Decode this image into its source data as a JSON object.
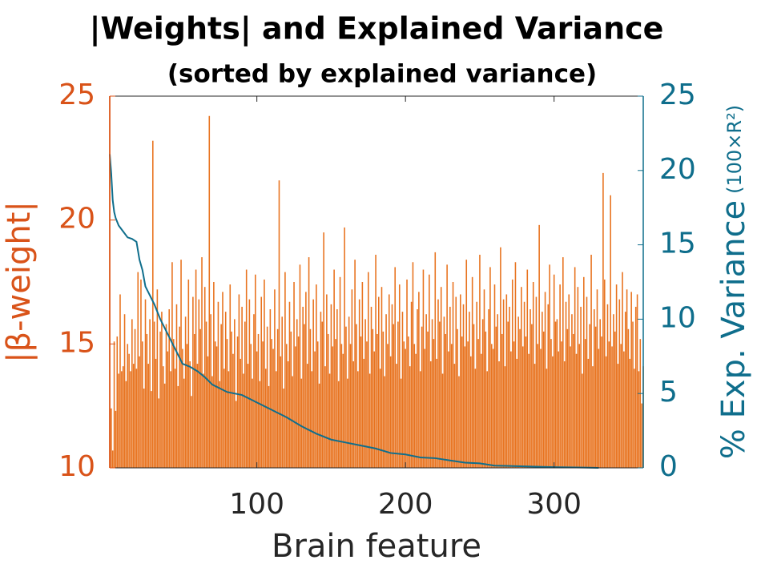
{
  "chart_data": {
    "type": "bar",
    "title": "|Weights| and Explained Variance",
    "subtitle": "(sorted by explained variance)",
    "xlabel": "Brain feature",
    "ylabel": "|β-weight|",
    "y2label": "% Exp. Variance",
    "y2label_unit": "(100×R²)",
    "xlim": [
      1,
      360
    ],
    "xticks": [
      100,
      200,
      300
    ],
    "ylim": [
      10,
      25
    ],
    "yticks": [
      10,
      15,
      20,
      25
    ],
    "y2lim": [
      0,
      25
    ],
    "y2ticks": [
      0,
      5,
      10,
      15,
      20,
      25
    ],
    "ycolor": "#d95319",
    "y2color": "#0f6e8c",
    "x": [
      1,
      2,
      3,
      4,
      5,
      6,
      7,
      8,
      9,
      10,
      11,
      12,
      13,
      14,
      15,
      16,
      17,
      18,
      19,
      20,
      21,
      22,
      23,
      24,
      25,
      26,
      27,
      28,
      29,
      30,
      31,
      32,
      33,
      34,
      35,
      36,
      37,
      38,
      39,
      40,
      41,
      42,
      43,
      44,
      45,
      46,
      47,
      48,
      49,
      50,
      51,
      52,
      53,
      54,
      55,
      56,
      57,
      58,
      59,
      60,
      61,
      62,
      63,
      64,
      65,
      66,
      67,
      68,
      69,
      70,
      71,
      72,
      73,
      74,
      75,
      76,
      77,
      78,
      79,
      80,
      81,
      82,
      83,
      84,
      85,
      86,
      87,
      88,
      89,
      90,
      91,
      92,
      93,
      94,
      95,
      96,
      97,
      98,
      99,
      100,
      101,
      102,
      103,
      104,
      105,
      106,
      107,
      108,
      109,
      110,
      111,
      112,
      113,
      114,
      115,
      116,
      117,
      118,
      119,
      120,
      121,
      122,
      123,
      124,
      125,
      126,
      127,
      128,
      129,
      130,
      131,
      132,
      133,
      134,
      135,
      136,
      137,
      138,
      139,
      140,
      141,
      142,
      143,
      144,
      145,
      146,
      147,
      148,
      149,
      150,
      151,
      152,
      153,
      154,
      155,
      156,
      157,
      158,
      159,
      160,
      161,
      162,
      163,
      164,
      165,
      166,
      167,
      168,
      169,
      170,
      171,
      172,
      173,
      174,
      175,
      176,
      177,
      178,
      179,
      180,
      181,
      182,
      183,
      184,
      185,
      186,
      187,
      188,
      189,
      190,
      191,
      192,
      193,
      194,
      195,
      196,
      197,
      198,
      199,
      200,
      201,
      202,
      203,
      204,
      205,
      206,
      207,
      208,
      209,
      210,
      211,
      212,
      213,
      214,
      215,
      216,
      217,
      218,
      219,
      220,
      221,
      222,
      223,
      224,
      225,
      226,
      227,
      228,
      229,
      230,
      231,
      232,
      233,
      234,
      235,
      236,
      237,
      238,
      239,
      240,
      241,
      242,
      243,
      244,
      245,
      246,
      247,
      248,
      249,
      250,
      251,
      252,
      253,
      254,
      255,
      256,
      257,
      258,
      259,
      260,
      261,
      262,
      263,
      264,
      265,
      266,
      267,
      268,
      269,
      270,
      271,
      272,
      273,
      274,
      275,
      276,
      277,
      278,
      279,
      280,
      281,
      282,
      283,
      284,
      285,
      286,
      287,
      288,
      289,
      290,
      291,
      292,
      293,
      294,
      295,
      296,
      297,
      298,
      299,
      300,
      301,
      302,
      303,
      304,
      305,
      306,
      307,
      308,
      309,
      310,
      311,
      312,
      313,
      314,
      315,
      316,
      317,
      318,
      319,
      320,
      321,
      322,
      323,
      324,
      325,
      326,
      327,
      328,
      329,
      330,
      331,
      332,
      333,
      334,
      335,
      336,
      337,
      338,
      339,
      340,
      341,
      342,
      343,
      344,
      345,
      346,
      347,
      348,
      349,
      350,
      351,
      352,
      353,
      354,
      355,
      356,
      357,
      358,
      359,
      360
    ],
    "series": [
      {
        "type": "bar",
        "color": "#e8731f",
        "values": [
          25,
          12.4,
          10.7,
          15.1,
          12.3,
          15.3,
          13.8,
          17.0,
          13.9,
          14.1,
          16.2,
          13.5,
          15.0,
          14.6,
          13.9,
          16.0,
          14.2,
          15.6,
          14.0,
          17.9,
          14.5,
          17.6,
          15.1,
          13.2,
          16.8,
          15.4,
          14.2,
          16.0,
          13.1,
          23.2,
          15.9,
          14.4,
          17.2,
          12.8,
          15.5,
          16.3,
          14.1,
          13.4,
          15.8,
          14.7,
          16.4,
          13.9,
          18.3,
          15.2,
          14.0,
          16.6,
          13.3,
          15.7,
          18.4,
          14.8,
          13.6,
          16.1,
          15.0,
          17.6,
          14.3,
          12.9,
          16.9,
          15.4,
          18.0,
          14.2,
          16.8,
          15.6,
          18.5,
          13.8,
          17.3,
          15.9,
          14.5,
          24.2,
          16.2,
          13.7,
          17.5,
          15.1,
          14.9,
          16.7,
          13.5,
          15.8,
          17.1,
          14.0,
          16.3,
          15.2,
          13.9,
          17.4,
          15.5,
          14.6,
          16.0,
          12.7,
          15.3,
          17.0,
          14.4,
          16.5,
          13.8,
          15.9,
          18.0,
          14.2,
          16.8,
          15.0,
          13.6,
          16.2,
          17.8,
          14.7,
          15.4,
          13.5,
          16.9,
          15.1,
          17.6,
          14.0,
          15.7,
          13.3,
          16.4,
          15.2,
          14.8,
          17.2,
          13.9,
          15.6,
          21.6,
          14.5,
          16.1,
          13.2,
          17.9,
          15.0,
          14.3,
          16.7,
          15.5,
          13.7,
          17.5,
          14.9,
          16.0,
          15.3,
          18.2,
          13.6,
          16.5,
          15.8,
          17.1,
          14.2,
          18.5,
          15.6,
          13.9,
          16.8,
          14.7,
          17.4,
          15.1,
          13.4,
          16.3,
          15.9,
          19.5,
          14.1,
          17.0,
          15.4,
          13.8,
          16.6,
          14.9,
          18.0,
          15.2,
          16.4,
          13.5,
          17.7,
          15.0,
          14.6,
          19.7,
          15.7,
          13.6,
          16.1,
          15.0,
          17.2,
          14.3,
          18.4,
          15.8,
          13.9,
          16.8,
          15.3,
          17.5,
          14.4,
          16.0,
          15.1,
          17.9,
          13.8,
          16.5,
          15.6,
          14.7,
          18.6,
          15.4,
          16.9,
          14.0,
          17.3,
          15.5,
          13.7,
          16.2,
          15.0,
          17.0,
          14.5,
          16.6,
          15.8,
          18.1,
          14.2,
          15.9,
          17.4,
          13.6,
          16.3,
          15.1,
          14.8,
          17.6,
          15.3,
          14.1,
          16.7,
          18.3,
          15.0,
          14.6,
          16.4,
          17.1,
          13.9,
          15.7,
          18.0,
          14.8,
          16.2,
          15.5,
          17.8,
          14.3,
          16.0,
          15.2,
          18.7,
          14.4,
          16.8,
          15.9,
          17.3,
          13.8,
          16.1,
          15.4,
          18.2,
          14.7,
          16.5,
          15.0,
          17.5,
          14.2,
          16.9,
          15.6,
          13.7,
          17.0,
          15.3,
          16.6,
          14.9,
          18.4,
          15.1,
          16.3,
          14.5,
          17.7,
          15.8,
          14.0,
          16.7,
          15.2,
          18.6,
          14.6,
          16.0,
          17.2,
          15.5,
          13.9,
          16.4,
          18.1,
          15.0,
          14.8,
          17.4,
          15.7,
          16.2,
          14.3,
          18.9,
          15.4,
          16.8,
          14.1,
          17.0,
          15.9,
          16.5,
          14.7,
          17.6,
          15.1,
          18.3,
          14.4,
          16.1,
          15.6,
          17.3,
          14.9,
          16.7,
          15.3,
          18.0,
          14.6,
          16.4,
          15.8,
          17.5,
          14.2,
          16.9,
          15.0,
          19.8,
          14.8,
          16.3,
          15.5,
          17.1,
          14.0,
          16.6,
          18.2,
          15.2,
          14.5,
          17.8,
          15.9,
          16.0,
          14.7,
          17.4,
          15.1,
          18.5,
          14.3,
          16.7,
          15.6,
          17.0,
          14.9,
          16.2,
          15.4,
          18.1,
          14.6,
          17.3,
          15.0,
          16.5,
          13.8,
          17.7,
          15.2,
          16.9,
          14.4,
          15.8,
          18.6,
          14.1,
          16.4,
          15.7,
          17.2,
          14.8,
          16.0,
          15.3,
          21.9,
          17.6,
          14.5,
          16.6,
          15.1,
          21.0,
          14.9,
          16.2,
          15.5,
          17.4,
          14.2,
          16.8,
          15.0,
          17.9,
          14.7,
          16.3,
          17.2,
          15.6,
          14.4,
          17.1,
          15.9,
          14.0,
          16.5,
          17.0,
          13.9,
          15.2,
          12.6,
          14.1
        ]
      },
      {
        "type": "line",
        "axis": "y2",
        "color": "#0f6e8c",
        "x": [
          1,
          2,
          3,
          4,
          5,
          7,
          10,
          13,
          16,
          19,
          21,
          23,
          25,
          28,
          31,
          35,
          40,
          45,
          50,
          55,
          60,
          65,
          70,
          80,
          90,
          100,
          110,
          120,
          130,
          140,
          150,
          160,
          170,
          180,
          190,
          200,
          210,
          220,
          230,
          240,
          250,
          260,
          280,
          300,
          320,
          330
        ],
        "values": [
          21.1,
          19.8,
          18.0,
          17.2,
          16.8,
          16.3,
          15.9,
          15.5,
          15.4,
          15.2,
          14.0,
          13.3,
          12.2,
          11.6,
          11.0,
          10.0,
          9.0,
          8.0,
          7.0,
          6.8,
          6.5,
          6.1,
          5.6,
          5.1,
          4.9,
          4.4,
          3.9,
          3.4,
          2.8,
          2.3,
          1.9,
          1.7,
          1.5,
          1.3,
          1.0,
          0.9,
          0.7,
          0.65,
          0.5,
          0.35,
          0.3,
          0.15,
          0.1,
          0.05,
          0.02,
          0
        ]
      }
    ]
  }
}
